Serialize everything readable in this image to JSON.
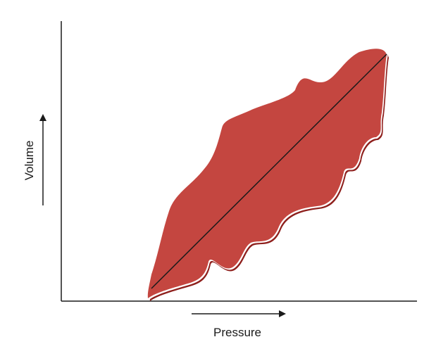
{
  "axes": {
    "x_label": "Pressure",
    "y_label": "Volume"
  },
  "colors": {
    "background": "#ffffff",
    "axis": "#1a1a1a",
    "region_fill": "#c44640",
    "region_shadow": "#8e1f1c",
    "region_highlight": "#ffffff",
    "trend_line": "#1a1a1a"
  }
}
